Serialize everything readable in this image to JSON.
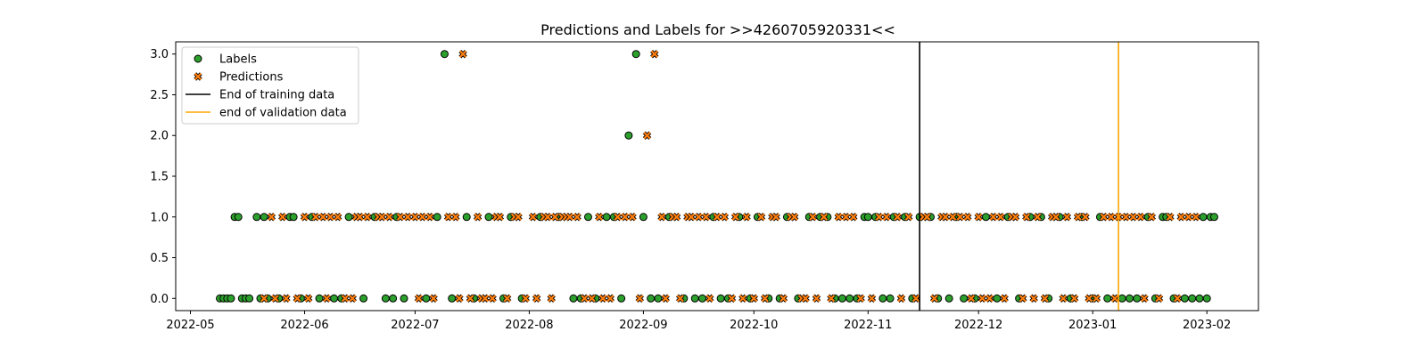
{
  "chart_data": {
    "type": "scatter",
    "title": "Predictions and Labels for >>4260705920331<<",
    "xlabel": "",
    "ylabel": "",
    "x_axis": {
      "type": "date",
      "range": [
        "2022-04-27",
        "2023-02-15"
      ],
      "ticks": [
        "2022-05-01",
        "2022-06-01",
        "2022-07-01",
        "2022-08-01",
        "2022-09-01",
        "2022-10-01",
        "2022-11-01",
        "2022-12-01",
        "2023-01-01",
        "2023-02-01"
      ],
      "tick_labels": [
        "2022-05",
        "2022-06",
        "2022-07",
        "2022-08",
        "2022-09",
        "2022-10",
        "2022-11",
        "2022-12",
        "2023-01",
        "2023-02"
      ]
    },
    "y_axis": {
      "range": [
        -0.15,
        3.15
      ],
      "ticks": [
        0.0,
        0.5,
        1.0,
        1.5,
        2.0,
        2.5,
        3.0
      ],
      "tick_labels": [
        "0.0",
        "0.5",
        "1.0",
        "1.5",
        "2.0",
        "2.5",
        "3.0"
      ]
    },
    "grid": false,
    "legend": {
      "placement": "top-left",
      "entries": [
        {
          "label": "Labels",
          "marker": "circle",
          "color": "#2ca02c"
        },
        {
          "label": "Predictions",
          "marker": "x",
          "color": "#ff7f0e"
        },
        {
          "label": "End of training data",
          "marker": "line",
          "color": "#000000"
        },
        {
          "label": "end of validation data",
          "marker": "line",
          "color": "#ffa500"
        }
      ]
    },
    "vlines": [
      {
        "name": "End of training data",
        "date": "2022-11-15",
        "color": "#000000"
      },
      {
        "name": "end of validation data",
        "date": "2023-01-08",
        "color": "#ffa500"
      }
    ],
    "series": [
      {
        "name": "Labels",
        "color": "#2ca02c",
        "edge_color": "#000000",
        "marker": "circle",
        "points": [
          [
            "2022-05-09",
            0
          ],
          [
            "2022-05-10",
            0
          ],
          [
            "2022-05-11",
            0
          ],
          [
            "2022-05-12",
            0
          ],
          [
            "2022-05-13",
            1
          ],
          [
            "2022-05-14",
            1
          ],
          [
            "2022-05-15",
            0
          ],
          [
            "2022-05-16",
            0
          ],
          [
            "2022-05-17",
            0
          ],
          [
            "2022-05-19",
            1
          ],
          [
            "2022-05-20",
            0
          ],
          [
            "2022-05-21",
            1
          ],
          [
            "2022-05-22",
            0
          ],
          [
            "2022-05-25",
            0
          ],
          [
            "2022-05-28",
            1
          ],
          [
            "2022-05-29",
            1
          ],
          [
            "2022-05-31",
            0
          ],
          [
            "2022-06-03",
            1
          ],
          [
            "2022-06-05",
            0
          ],
          [
            "2022-06-09",
            0
          ],
          [
            "2022-06-11",
            0
          ],
          [
            "2022-06-13",
            1
          ],
          [
            "2022-06-17",
            0
          ],
          [
            "2022-06-20",
            1
          ],
          [
            "2022-06-23",
            0
          ],
          [
            "2022-06-25",
            0
          ],
          [
            "2022-06-26",
            1
          ],
          [
            "2022-06-28",
            0
          ],
          [
            "2022-07-04",
            0
          ],
          [
            "2022-07-07",
            1
          ],
          [
            "2022-07-09",
            3
          ],
          [
            "2022-07-11",
            0
          ],
          [
            "2022-07-15",
            1
          ],
          [
            "2022-07-17",
            0
          ],
          [
            "2022-07-21",
            1
          ],
          [
            "2022-07-25",
            0
          ],
          [
            "2022-07-27",
            1
          ],
          [
            "2022-07-30",
            0
          ],
          [
            "2022-08-04",
            1
          ],
          [
            "2022-08-09",
            1
          ],
          [
            "2022-08-13",
            0
          ],
          [
            "2022-08-15",
            0
          ],
          [
            "2022-08-17",
            1
          ],
          [
            "2022-08-19",
            0
          ],
          [
            "2022-08-22",
            1
          ],
          [
            "2022-08-24",
            1
          ],
          [
            "2022-08-26",
            0
          ],
          [
            "2022-08-28",
            2
          ],
          [
            "2022-08-30",
            3
          ],
          [
            "2022-09-01",
            1
          ],
          [
            "2022-09-03",
            0
          ],
          [
            "2022-09-05",
            0
          ],
          [
            "2022-09-08",
            1
          ],
          [
            "2022-09-12",
            0
          ],
          [
            "2022-09-15",
            0
          ],
          [
            "2022-09-17",
            0
          ],
          [
            "2022-09-20",
            1
          ],
          [
            "2022-09-22",
            0
          ],
          [
            "2022-09-24",
            0
          ],
          [
            "2022-09-27",
            1
          ],
          [
            "2022-09-30",
            0
          ],
          [
            "2022-10-02",
            1
          ],
          [
            "2022-10-05",
            0
          ],
          [
            "2022-10-08",
            0
          ],
          [
            "2022-10-10",
            1
          ],
          [
            "2022-10-13",
            0
          ],
          [
            "2022-10-16",
            1
          ],
          [
            "2022-10-19",
            1
          ],
          [
            "2022-10-21",
            1
          ],
          [
            "2022-10-23",
            0
          ],
          [
            "2022-10-25",
            0
          ],
          [
            "2022-10-27",
            0
          ],
          [
            "2022-10-29",
            0
          ],
          [
            "2022-10-31",
            1
          ],
          [
            "2022-11-01",
            1
          ],
          [
            "2022-11-03",
            1
          ],
          [
            "2022-11-05",
            0
          ],
          [
            "2022-11-07",
            0
          ],
          [
            "2022-11-08",
            1
          ],
          [
            "2022-11-11",
            1
          ],
          [
            "2022-11-13",
            0
          ],
          [
            "2022-11-15",
            1
          ],
          [
            "2022-11-18",
            1
          ],
          [
            "2022-11-20",
            0
          ],
          [
            "2022-11-23",
            0
          ],
          [
            "2022-11-25",
            1
          ],
          [
            "2022-11-27",
            0
          ],
          [
            "2022-11-30",
            0
          ],
          [
            "2022-12-03",
            1
          ],
          [
            "2022-12-06",
            0
          ],
          [
            "2022-12-09",
            1
          ],
          [
            "2022-12-12",
            0
          ],
          [
            "2022-12-15",
            1
          ],
          [
            "2022-12-18",
            1
          ],
          [
            "2022-12-20",
            0
          ],
          [
            "2022-12-23",
            1
          ],
          [
            "2022-12-26",
            0
          ],
          [
            "2022-12-29",
            1
          ],
          [
            "2023-01-01",
            0
          ],
          [
            "2023-01-03",
            1
          ],
          [
            "2023-01-05",
            0
          ],
          [
            "2023-01-09",
            0
          ],
          [
            "2023-01-11",
            0
          ],
          [
            "2023-01-13",
            0
          ],
          [
            "2023-01-16",
            1
          ],
          [
            "2023-01-18",
            0
          ],
          [
            "2023-01-20",
            1
          ],
          [
            "2023-01-21",
            1
          ],
          [
            "2023-01-23",
            0
          ],
          [
            "2023-01-26",
            0
          ],
          [
            "2023-01-28",
            0
          ],
          [
            "2023-01-30",
            0
          ],
          [
            "2023-01-31",
            1
          ],
          [
            "2023-02-01",
            0
          ],
          [
            "2023-02-02",
            1
          ],
          [
            "2023-02-03",
            1
          ]
        ]
      },
      {
        "name": "Predictions",
        "color": "#ff7f0e",
        "edge_color": "#000000",
        "marker": "x",
        "points": [
          [
            "2022-05-21",
            0
          ],
          [
            "2022-05-23",
            1
          ],
          [
            "2022-05-24",
            0
          ],
          [
            "2022-05-26",
            1
          ],
          [
            "2022-05-27",
            0
          ],
          [
            "2022-05-30",
            0
          ],
          [
            "2022-06-01",
            1
          ],
          [
            "2022-06-02",
            0
          ],
          [
            "2022-06-04",
            1
          ],
          [
            "2022-06-06",
            1
          ],
          [
            "2022-06-07",
            0
          ],
          [
            "2022-06-08",
            1
          ],
          [
            "2022-06-10",
            1
          ],
          [
            "2022-06-12",
            0
          ],
          [
            "2022-06-14",
            0
          ],
          [
            "2022-06-15",
            1
          ],
          [
            "2022-06-16",
            1
          ],
          [
            "2022-06-18",
            1
          ],
          [
            "2022-06-21",
            1
          ],
          [
            "2022-06-22",
            1
          ],
          [
            "2022-06-24",
            1
          ],
          [
            "2022-06-27",
            1
          ],
          [
            "2022-06-29",
            1
          ],
          [
            "2022-07-01",
            1
          ],
          [
            "2022-07-02",
            0
          ],
          [
            "2022-07-03",
            1
          ],
          [
            "2022-07-05",
            1
          ],
          [
            "2022-07-06",
            0
          ],
          [
            "2022-07-10",
            1
          ],
          [
            "2022-07-12",
            1
          ],
          [
            "2022-07-13",
            0
          ],
          [
            "2022-07-14",
            3
          ],
          [
            "2022-07-16",
            0
          ],
          [
            "2022-07-18",
            1
          ],
          [
            "2022-07-19",
            0
          ],
          [
            "2022-07-20",
            0
          ],
          [
            "2022-07-22",
            0
          ],
          [
            "2022-07-23",
            1
          ],
          [
            "2022-07-24",
            1
          ],
          [
            "2022-07-26",
            0
          ],
          [
            "2022-07-28",
            1
          ],
          [
            "2022-07-29",
            1
          ],
          [
            "2022-07-31",
            0
          ],
          [
            "2022-08-02",
            1
          ],
          [
            "2022-08-03",
            0
          ],
          [
            "2022-08-05",
            1
          ],
          [
            "2022-08-06",
            1
          ],
          [
            "2022-08-07",
            0
          ],
          [
            "2022-08-08",
            1
          ],
          [
            "2022-08-10",
            1
          ],
          [
            "2022-08-11",
            1
          ],
          [
            "2022-08-12",
            1
          ],
          [
            "2022-08-14",
            1
          ],
          [
            "2022-08-16",
            0
          ],
          [
            "2022-08-18",
            0
          ],
          [
            "2022-08-20",
            1
          ],
          [
            "2022-08-21",
            0
          ],
          [
            "2022-08-23",
            0
          ],
          [
            "2022-08-25",
            1
          ],
          [
            "2022-08-27",
            1
          ],
          [
            "2022-08-29",
            1
          ],
          [
            "2022-08-31",
            0
          ],
          [
            "2022-09-02",
            2
          ],
          [
            "2022-09-04",
            3
          ],
          [
            "2022-09-06",
            1
          ],
          [
            "2022-09-07",
            0
          ],
          [
            "2022-09-09",
            1
          ],
          [
            "2022-09-10",
            1
          ],
          [
            "2022-09-11",
            0
          ],
          [
            "2022-09-13",
            1
          ],
          [
            "2022-09-14",
            1
          ],
          [
            "2022-09-16",
            1
          ],
          [
            "2022-09-18",
            1
          ],
          [
            "2022-09-19",
            0
          ],
          [
            "2022-09-21",
            1
          ],
          [
            "2022-09-23",
            1
          ],
          [
            "2022-09-25",
            0
          ],
          [
            "2022-09-26",
            1
          ],
          [
            "2022-09-28",
            0
          ],
          [
            "2022-09-29",
            1
          ],
          [
            "2022-10-01",
            0
          ],
          [
            "2022-10-03",
            1
          ],
          [
            "2022-10-04",
            0
          ],
          [
            "2022-10-06",
            1
          ],
          [
            "2022-10-07",
            1
          ],
          [
            "2022-10-09",
            0
          ],
          [
            "2022-10-11",
            1
          ],
          [
            "2022-10-12",
            1
          ],
          [
            "2022-10-14",
            0
          ],
          [
            "2022-10-15",
            0
          ],
          [
            "2022-10-17",
            1
          ],
          [
            "2022-10-18",
            0
          ],
          [
            "2022-10-20",
            1
          ],
          [
            "2022-10-22",
            0
          ],
          [
            "2022-10-24",
            1
          ],
          [
            "2022-10-26",
            1
          ],
          [
            "2022-10-28",
            1
          ],
          [
            "2022-10-30",
            0
          ],
          [
            "2022-11-02",
            0
          ],
          [
            "2022-11-04",
            1
          ],
          [
            "2022-11-06",
            1
          ],
          [
            "2022-11-09",
            1
          ],
          [
            "2022-11-10",
            0
          ],
          [
            "2022-11-12",
            1
          ],
          [
            "2022-11-14",
            0
          ],
          [
            "2022-11-16",
            1
          ],
          [
            "2022-11-17",
            1
          ],
          [
            "2022-11-19",
            0
          ],
          [
            "2022-11-21",
            1
          ],
          [
            "2022-11-22",
            1
          ],
          [
            "2022-11-24",
            1
          ],
          [
            "2022-11-26",
            1
          ],
          [
            "2022-11-28",
            1
          ],
          [
            "2022-11-29",
            0
          ],
          [
            "2022-12-01",
            1
          ],
          [
            "2022-12-02",
            0
          ],
          [
            "2022-12-04",
            0
          ],
          [
            "2022-12-05",
            1
          ],
          [
            "2022-12-07",
            1
          ],
          [
            "2022-12-08",
            0
          ],
          [
            "2022-12-10",
            1
          ],
          [
            "2022-12-11",
            1
          ],
          [
            "2022-12-13",
            0
          ],
          [
            "2022-12-14",
            1
          ],
          [
            "2022-12-16",
            0
          ],
          [
            "2022-12-17",
            1
          ],
          [
            "2022-12-19",
            0
          ],
          [
            "2022-12-21",
            1
          ],
          [
            "2022-12-22",
            1
          ],
          [
            "2022-12-24",
            0
          ],
          [
            "2022-12-25",
            1
          ],
          [
            "2022-12-27",
            0
          ],
          [
            "2022-12-28",
            1
          ],
          [
            "2022-12-30",
            1
          ],
          [
            "2022-12-31",
            0
          ],
          [
            "2023-01-02",
            0
          ],
          [
            "2023-01-04",
            1
          ],
          [
            "2023-01-06",
            1
          ],
          [
            "2023-01-07",
            0
          ],
          [
            "2023-01-08",
            1
          ],
          [
            "2023-01-10",
            1
          ],
          [
            "2023-01-12",
            1
          ],
          [
            "2023-01-14",
            1
          ],
          [
            "2023-01-15",
            0
          ],
          [
            "2023-01-17",
            1
          ],
          [
            "2023-01-19",
            0
          ],
          [
            "2023-01-22",
            1
          ],
          [
            "2023-01-24",
            0
          ],
          [
            "2023-01-25",
            1
          ],
          [
            "2023-01-27",
            1
          ],
          [
            "2023-01-29",
            1
          ]
        ]
      }
    ]
  }
}
